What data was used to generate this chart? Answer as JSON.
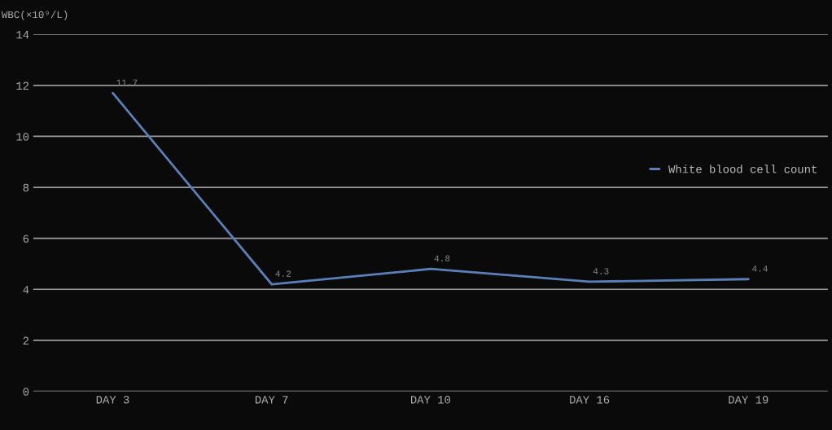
{
  "chart_data": {
    "type": "line",
    "ylabel": "WBC(×10⁹/L)",
    "categories": [
      "DAY 3",
      "DAY 7",
      "DAY 10",
      "DAY 16",
      "DAY 19"
    ],
    "series": [
      {
        "name": "White blood cell count",
        "color": "#5b7fb8",
        "values": [
          11.7,
          4.2,
          4.8,
          4.3,
          4.4
        ]
      }
    ],
    "ylim": [
      0,
      14
    ],
    "yticks": [
      0,
      2,
      4,
      6,
      8,
      10,
      12,
      14
    ],
    "grid": "y",
    "legend": "right",
    "data_labels": true,
    "marker": "none",
    "line_style": "solid"
  }
}
